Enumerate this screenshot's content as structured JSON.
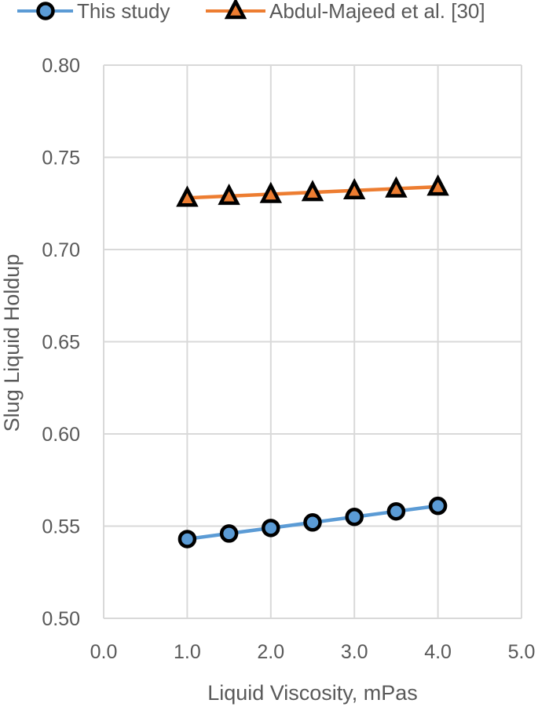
{
  "chart_data": {
    "type": "line",
    "xlabel": "Liquid Viscosity, mPas",
    "ylabel": "Slug Liquid Holdup",
    "xlim": [
      0.0,
      5.0
    ],
    "ylim": [
      0.5,
      0.8
    ],
    "x_ticks": [
      "0.0",
      "1.0",
      "2.0",
      "3.0",
      "4.0",
      "5.0"
    ],
    "y_ticks": [
      "0.50",
      "0.55",
      "0.60",
      "0.65",
      "0.70",
      "0.75",
      "0.80"
    ],
    "x_tick_values": [
      0,
      1,
      2,
      3,
      4,
      5
    ],
    "y_tick_values": [
      0.5,
      0.55,
      0.6,
      0.65,
      0.7,
      0.75,
      0.8
    ],
    "grid": true,
    "legend_position": "top",
    "x": [
      1.0,
      1.5,
      2.0,
      2.5,
      3.0,
      3.5,
      4.0
    ],
    "series": [
      {
        "name": "This study",
        "values": [
          0.543,
          0.546,
          0.549,
          0.552,
          0.555,
          0.558,
          0.561
        ],
        "color": "#5B9BD5",
        "marker": "circle"
      },
      {
        "name": "Abdul-Majeed et al. [30]",
        "values": [
          0.728,
          0.729,
          0.73,
          0.731,
          0.732,
          0.733,
          0.734
        ],
        "color": "#ED7D31",
        "marker": "triangle"
      }
    ]
  }
}
